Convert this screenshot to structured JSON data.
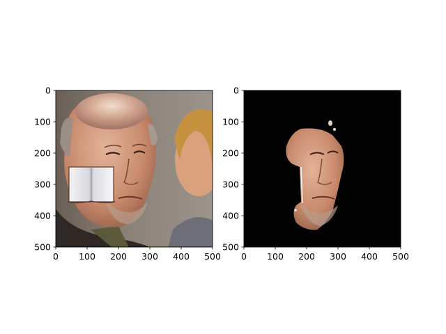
{
  "figure": {
    "background": "#ffffff"
  },
  "chart_data": [
    {
      "type": "image",
      "content": "photo",
      "title": "",
      "xlabel": "",
      "ylabel": "",
      "xlim": [
        0,
        500
      ],
      "ylim": [
        500,
        0
      ],
      "xticks": [
        0,
        100,
        200,
        300,
        400,
        500
      ],
      "yticks": [
        0,
        100,
        200,
        300,
        400,
        500
      ],
      "xtick_labels": [
        "0",
        "100",
        "200",
        "300",
        "400",
        "500"
      ],
      "ytick_labels": [
        "0",
        "100",
        "200",
        "300",
        "400",
        "500"
      ],
      "grid": false
    },
    {
      "type": "image",
      "content": "segmentation-mask",
      "title": "",
      "xlabel": "",
      "ylabel": "",
      "xlim": [
        0,
        500
      ],
      "ylim": [
        500,
        0
      ],
      "xticks": [
        0,
        100,
        200,
        300,
        400,
        500
      ],
      "yticks": [
        0,
        100,
        200,
        300,
        400,
        500
      ],
      "xtick_labels": [
        "0",
        "100",
        "200",
        "300",
        "400",
        "500"
      ],
      "ytick_labels": [
        "0",
        "100",
        "200",
        "300",
        "400",
        "500"
      ],
      "grid": false
    }
  ]
}
